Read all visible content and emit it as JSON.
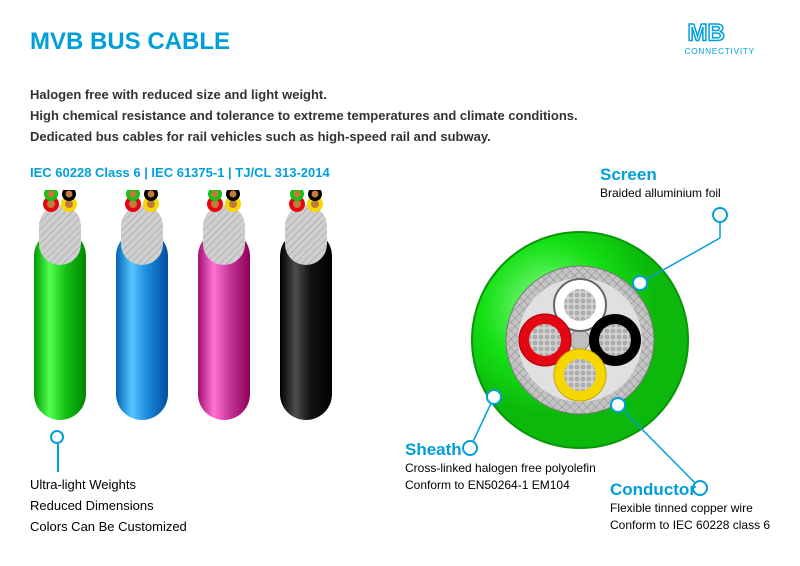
{
  "title": {
    "text": "MVB BUS CABLE",
    "color": "#009fda"
  },
  "logo": {
    "brand_top": "MB",
    "brand_bottom": "CONNECTIVITY",
    "color": "#009fda"
  },
  "description": {
    "line1": "Halogen free with reduced size and light weight.",
    "line2": "High chemical resistance and tolerance to extreme temperatures and climate conditions.",
    "line3": "Dedicated bus cables for rail vehicles such as high-speed rail and subway.",
    "color": "#333333"
  },
  "standards": {
    "text": "IEC 60228 Class 6 | IEC 61375-1 | TJ/CL 313-2014",
    "color": "#009fda"
  },
  "cable_variants": {
    "colors": [
      "#15c215",
      "#1a8adc",
      "#c83797",
      "#111111"
    ],
    "mesh_color": "#b0b0b0",
    "core_colors": {
      "red": "#e30613",
      "yellow": "#f6d800",
      "black": "#000000",
      "green": "#15c215"
    },
    "copper": "#c27a3d"
  },
  "features": {
    "line1": "Ultra-light Weights",
    "line2": "Reduced Dimensions",
    "line3": "Colors Can Be Customized"
  },
  "cross_section": {
    "outer_diameter": 220,
    "sheath_color": "#15e015",
    "sheath_highlight": "#6fff6f",
    "screen_color": "#b8b8b8",
    "screen_mesh": "#9a9a9a",
    "filler_color": "#dddddd",
    "cores": [
      {
        "color": "#e30613",
        "pos": "left"
      },
      {
        "color": "#ffffff",
        "pos": "top",
        "ring": "#666666"
      },
      {
        "color": "#000000",
        "pos": "right"
      },
      {
        "color": "#f6d800",
        "pos": "bottom"
      }
    ],
    "strand_color": "#a8a8a8"
  },
  "labels": {
    "screen": {
      "title": "Screen",
      "sub": "Braided alluminium foil",
      "title_color": "#009fda"
    },
    "sheath": {
      "title": "Sheath",
      "sub1": "Cross-linked halogen free polyolefin",
      "sub2": "Conform to EN50264-1 EM104",
      "title_color": "#009fda"
    },
    "conductor": {
      "title": "Conductor",
      "sub1": "Flexible tinned copper wire",
      "sub2": "Conform to IEC 60228 class 6",
      "title_color": "#009fda"
    }
  },
  "callout_style": {
    "ring_color": "#009fda",
    "line_color": "#009fda"
  }
}
